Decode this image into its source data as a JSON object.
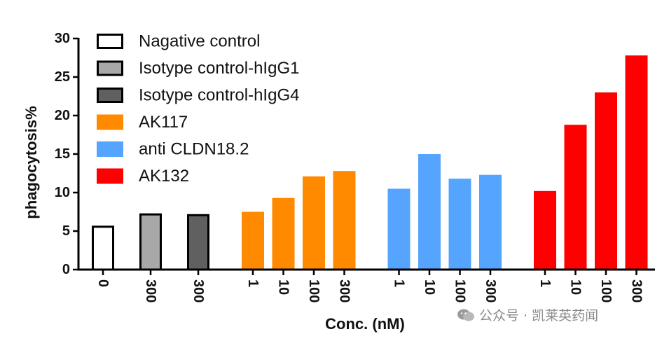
{
  "chart_data": {
    "type": "bar",
    "ylabel": "phagocytosis%",
    "xlabel": "Conc. (nM)",
    "ylim": [
      0,
      30
    ],
    "yticks": [
      "0",
      "5",
      "10",
      "15",
      "20",
      "25",
      "30"
    ],
    "grid": false,
    "legend_position": "top-left",
    "groups": [
      {
        "name": "Nagative control",
        "color": "#ffffff",
        "edge": "#000000",
        "categories": [
          "0"
        ],
        "values": [
          5.7
        ]
      },
      {
        "name": "Isotype control-hIgG1",
        "color": "#a8a8a8",
        "edge": "#000000",
        "categories": [
          "300"
        ],
        "values": [
          7.3
        ]
      },
      {
        "name": "Isotype control-hIgG4",
        "color": "#606060",
        "edge": "#000000",
        "categories": [
          "300"
        ],
        "values": [
          7.2
        ]
      },
      {
        "name": "AK117",
        "color": "#ff8a00",
        "edge": "#ff8a00",
        "categories": [
          "1",
          "10",
          "100",
          "300"
        ],
        "values": [
          7.5,
          9.3,
          12.1,
          12.8
        ]
      },
      {
        "name": "anti CLDN18.2",
        "color": "#55a5ff",
        "edge": "#55a5ff",
        "categories": [
          "1",
          "10",
          "100",
          "300"
        ],
        "values": [
          10.5,
          15.0,
          11.8,
          12.3
        ]
      },
      {
        "name": "AK132",
        "color": "#ff0000",
        "edge": "#ff0000",
        "categories": [
          "1",
          "10",
          "100",
          "300"
        ],
        "values": [
          10.2,
          18.8,
          23.0,
          27.8
        ]
      }
    ]
  },
  "watermark": {
    "text": "公众号 · 凯莱英药闻",
    "icon": "wechat-icon"
  }
}
